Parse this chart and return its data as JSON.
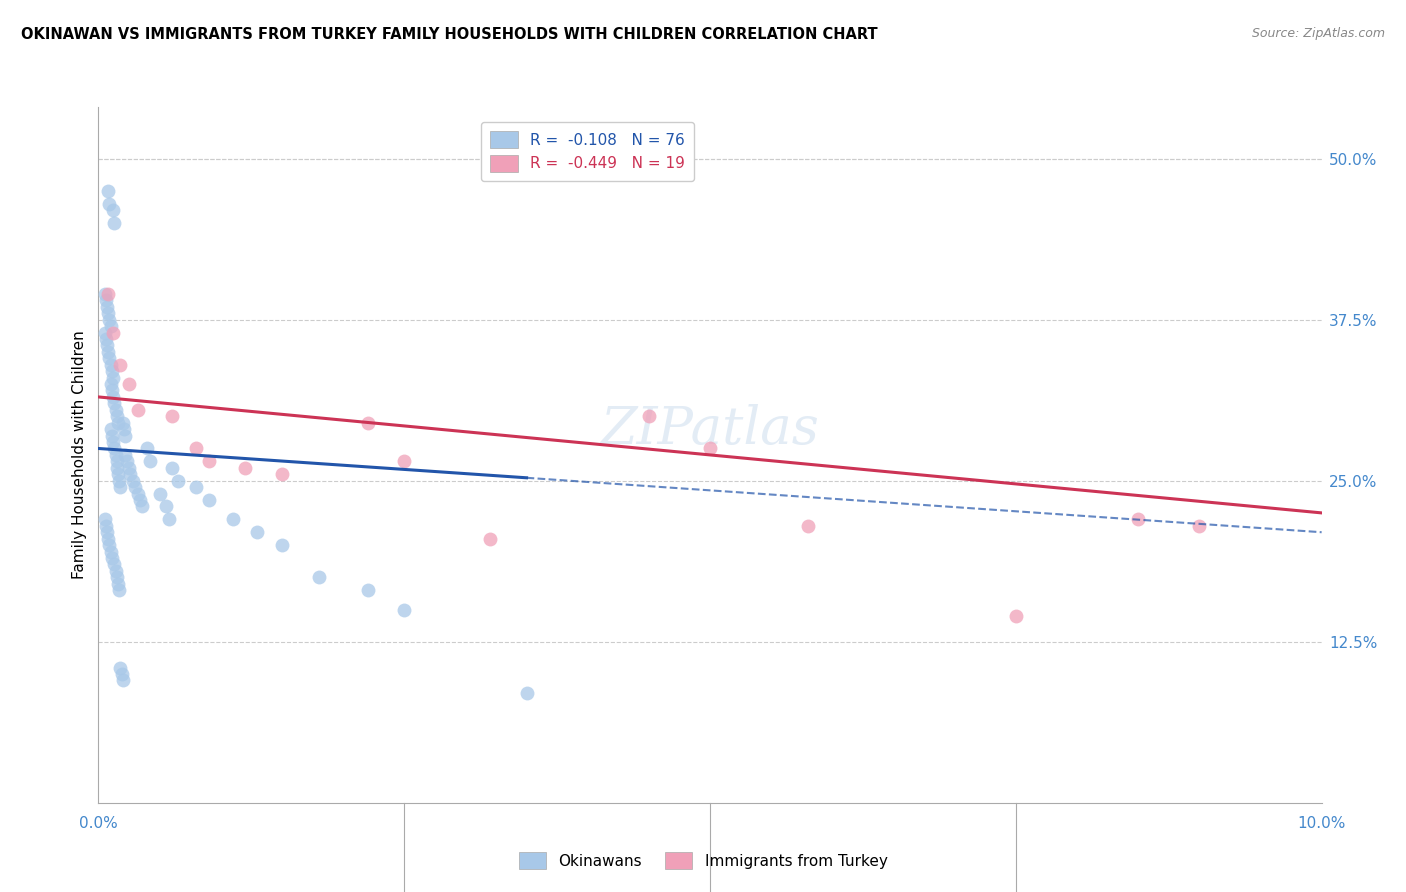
{
  "title": "OKINAWAN VS IMMIGRANTS FROM TURKEY FAMILY HOUSEHOLDS WITH CHILDREN CORRELATION CHART",
  "source": "Source: ZipAtlas.com",
  "ylabel": "Family Households with Children",
  "xlim": [
    0.0,
    10.0
  ],
  "ylim": [
    0.0,
    54.0
  ],
  "yticks": [
    12.5,
    25.0,
    37.5,
    50.0
  ],
  "ytick_labels": [
    "12.5%",
    "25.0%",
    "37.5%",
    "50.0%"
  ],
  "okinawan_color": "#a8c8e8",
  "okinawan_line_color": "#2255aa",
  "turkey_color": "#f0a0b8",
  "turkey_line_color": "#cc3355",
  "background_color": "#ffffff",
  "grid_color": "#cccccc",
  "watermark": "ZIPatlas",
  "okinawan_x": [
    0.08,
    0.09,
    0.12,
    0.13,
    0.05,
    0.06,
    0.07,
    0.08,
    0.09,
    0.1,
    0.05,
    0.06,
    0.07,
    0.08,
    0.09,
    0.1,
    0.11,
    0.12,
    0.1,
    0.11,
    0.12,
    0.13,
    0.14,
    0.15,
    0.16,
    0.1,
    0.11,
    0.12,
    0.13,
    0.14,
    0.15,
    0.15,
    0.16,
    0.17,
    0.18,
    0.2,
    0.21,
    0.22,
    0.22,
    0.23,
    0.25,
    0.26,
    0.28,
    0.3,
    0.32,
    0.34,
    0.36,
    0.4,
    0.42,
    0.5,
    0.55,
    0.58,
    0.6,
    0.65,
    0.8,
    0.9,
    1.1,
    1.3,
    1.5,
    1.8,
    2.2,
    2.5,
    3.5,
    0.05,
    0.06,
    0.07,
    0.08,
    0.09,
    0.1,
    0.11,
    0.13,
    0.14,
    0.15,
    0.16,
    0.17,
    0.18,
    0.19,
    0.2
  ],
  "okinawan_y": [
    47.5,
    46.5,
    46.0,
    45.0,
    39.5,
    39.0,
    38.5,
    38.0,
    37.5,
    37.0,
    36.5,
    36.0,
    35.5,
    35.0,
    34.5,
    34.0,
    33.5,
    33.0,
    32.5,
    32.0,
    31.5,
    31.0,
    30.5,
    30.0,
    29.5,
    29.0,
    28.5,
    28.0,
    27.5,
    27.0,
    26.5,
    26.0,
    25.5,
    25.0,
    24.5,
    29.5,
    29.0,
    28.5,
    27.0,
    26.5,
    26.0,
    25.5,
    25.0,
    24.5,
    24.0,
    23.5,
    23.0,
    27.5,
    26.5,
    24.0,
    23.0,
    22.0,
    26.0,
    25.0,
    24.5,
    23.5,
    22.0,
    21.0,
    20.0,
    17.5,
    16.5,
    15.0,
    8.5,
    22.0,
    21.5,
    21.0,
    20.5,
    20.0,
    19.5,
    19.0,
    18.5,
    18.0,
    17.5,
    17.0,
    16.5,
    10.5,
    10.0,
    9.5
  ],
  "turkey_x": [
    0.08,
    0.12,
    0.18,
    0.25,
    0.32,
    0.6,
    0.8,
    0.9,
    1.2,
    1.5,
    2.2,
    2.5,
    3.2,
    4.5,
    5.0,
    5.8,
    7.5,
    8.5,
    9.0
  ],
  "turkey_y": [
    39.5,
    36.5,
    34.0,
    32.5,
    30.5,
    30.0,
    27.5,
    26.5,
    26.0,
    25.5,
    29.5,
    26.5,
    20.5,
    30.0,
    27.5,
    21.5,
    14.5,
    22.0,
    21.5
  ],
  "ok_regression_x0": 0.0,
  "ok_regression_x1": 10.0,
  "ok_regression_y0": 27.5,
  "ok_regression_y1": 21.0,
  "tr_regression_x0": 0.0,
  "tr_regression_x1": 10.0,
  "tr_regression_y0": 31.5,
  "tr_regression_y1": 22.5
}
